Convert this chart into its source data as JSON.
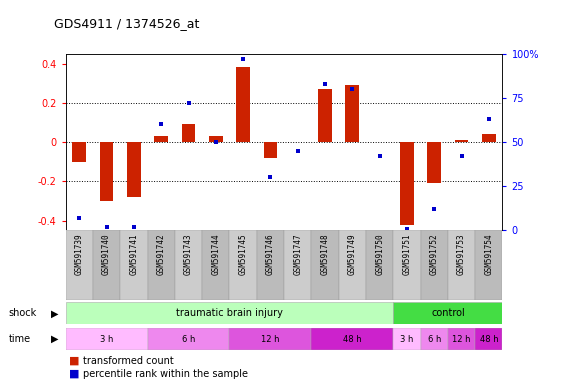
{
  "title": "GDS4911 / 1374526_at",
  "samples": [
    "GSM591739",
    "GSM591740",
    "GSM591741",
    "GSM591742",
    "GSM591743",
    "GSM591744",
    "GSM591745",
    "GSM591746",
    "GSM591747",
    "GSM591748",
    "GSM591749",
    "GSM591750",
    "GSM591751",
    "GSM591752",
    "GSM591753",
    "GSM591754"
  ],
  "bar_values": [
    -0.1,
    -0.3,
    -0.28,
    0.03,
    0.09,
    0.03,
    0.38,
    -0.08,
    0.0,
    0.27,
    0.29,
    0.0,
    -0.42,
    -0.21,
    0.01,
    0.04
  ],
  "dot_values": [
    7,
    2,
    2,
    60,
    72,
    50,
    97,
    30,
    45,
    83,
    80,
    42,
    1,
    12,
    42,
    63
  ],
  "ylim": [
    -0.45,
    0.45
  ],
  "yticks": [
    -0.4,
    -0.2,
    0.0,
    0.2,
    0.4
  ],
  "right_yticks": [
    0,
    25,
    50,
    75,
    100
  ],
  "bar_color": "#cc2200",
  "dot_color": "#0000cc",
  "background_color": "#ffffff",
  "tbi_label": "traumatic brain injury",
  "tbi_color": "#bbffbb",
  "tbi_span": [
    0,
    11
  ],
  "ctrl_label": "control",
  "ctrl_color": "#44dd44",
  "ctrl_span": [
    12,
    15
  ],
  "time_groups": [
    {
      "label": "3 h",
      "span": [
        0,
        2
      ],
      "color": "#ffbbff"
    },
    {
      "label": "6 h",
      "span": [
        3,
        5
      ],
      "color": "#ee88ee"
    },
    {
      "label": "12 h",
      "span": [
        6,
        8
      ],
      "color": "#dd55dd"
    },
    {
      "label": "48 h",
      "span": [
        9,
        11
      ],
      "color": "#cc22cc"
    },
    {
      "label": "3 h",
      "span": [
        12,
        12
      ],
      "color": "#ffbbff"
    },
    {
      "label": "6 h",
      "span": [
        13,
        13
      ],
      "color": "#ee88ee"
    },
    {
      "label": "12 h",
      "span": [
        14,
        14
      ],
      "color": "#dd55dd"
    },
    {
      "label": "48 h",
      "span": [
        15,
        15
      ],
      "color": "#cc22cc"
    }
  ],
  "legend_bar_color": "#cc2200",
  "legend_dot_color": "#0000cc",
  "legend_bar_label": "transformed count",
  "legend_dot_label": "percentile rank within the sample"
}
